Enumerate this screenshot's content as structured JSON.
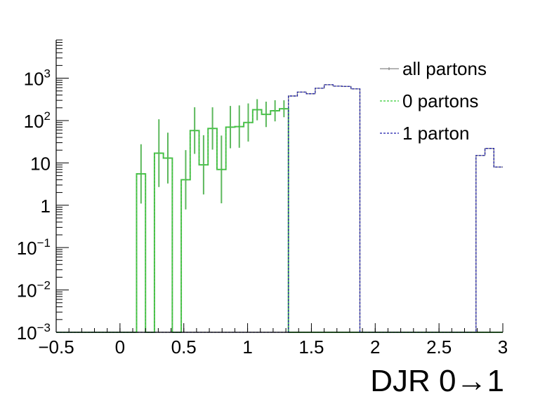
{
  "chart_data": {
    "type": "histogram-step",
    "xlabel": "DJR 0→1",
    "ylabel": "",
    "xlim": [
      -0.5,
      3.0
    ],
    "ylim": [
      0.001,
      8000
    ],
    "yscale": "log",
    "grid": false,
    "legend_position": "top-right",
    "x_ticks": [
      {
        "value": -0.5,
        "label": "−0.5"
      },
      {
        "value": 0,
        "label": "0"
      },
      {
        "value": 0.5,
        "label": "0.5"
      },
      {
        "value": 1,
        "label": "1"
      },
      {
        "value": 1.5,
        "label": "1.5"
      },
      {
        "value": 2,
        "label": "2"
      },
      {
        "value": 2.5,
        "label": "2.5"
      },
      {
        "value": 3,
        "label": "3"
      }
    ],
    "y_ticks": [
      {
        "value": 0.001,
        "base": "10",
        "exp": "−3",
        "plain": ""
      },
      {
        "value": 0.01,
        "base": "10",
        "exp": "−2",
        "plain": ""
      },
      {
        "value": 0.1,
        "base": "10",
        "exp": "−1",
        "plain": ""
      },
      {
        "value": 1,
        "base": "",
        "exp": "",
        "plain": "1"
      },
      {
        "value": 10,
        "base": "",
        "exp": "",
        "plain": "10"
      },
      {
        "value": 100,
        "base": "10",
        "exp": "2",
        "plain": ""
      },
      {
        "value": 1000,
        "base": "10",
        "exp": "3",
        "plain": ""
      }
    ],
    "bin_edges": [
      -0.5,
      -0.43,
      -0.36,
      -0.29,
      -0.22,
      -0.15,
      -0.08,
      -0.01,
      0.06,
      0.13,
      0.2,
      0.27,
      0.34,
      0.41,
      0.48,
      0.55,
      0.62,
      0.69,
      0.76,
      0.83,
      0.9,
      0.97,
      1.04,
      1.11,
      1.18,
      1.25,
      1.32,
      1.39,
      1.46,
      1.53,
      1.6,
      1.67,
      1.74,
      1.81,
      1.88,
      1.95,
      2.02,
      2.09,
      2.16,
      2.23,
      2.3,
      2.37,
      2.44,
      2.51,
      2.58,
      2.65,
      2.72,
      2.79,
      2.86,
      2.93,
      3.0
    ],
    "series": [
      {
        "name": "all partons",
        "color": "#888888",
        "style": "solid",
        "values": [
          0.001,
          0.001,
          0.001,
          0.001,
          0.001,
          0.001,
          0.001,
          0.001,
          0.001,
          0.001,
          0.001,
          0.001,
          0.001,
          0.001,
          0.001,
          0.001,
          0.001,
          0.001,
          0.001,
          0.001,
          0.001,
          0.001,
          0.001,
          0.001,
          0.001,
          0.001,
          380,
          470,
          430,
          580,
          700,
          650,
          640,
          560,
          0.001,
          0.001,
          0.001,
          0.001,
          0.001,
          0.001,
          0.001,
          0.001,
          0.001,
          0.001,
          0.001,
          0.001,
          0.001,
          15,
          22,
          8
        ]
      },
      {
        "name": "0 partons",
        "color": "#33cc33",
        "style": "dashed",
        "values": [
          0.001,
          0.001,
          0.001,
          0.001,
          0.001,
          0.001,
          0.001,
          0.001,
          0.001,
          5.5,
          0.001,
          17,
          13,
          0.001,
          4,
          58,
          9,
          65,
          7,
          70,
          72,
          90,
          180,
          140,
          170,
          190,
          0.001,
          0.001,
          0.001,
          0.001,
          0.001,
          0.001,
          0.001,
          0.001,
          0.001,
          0.001,
          0.001,
          0.001,
          0.001,
          0.001,
          0.001,
          0.001,
          0.001,
          0.001,
          0.001,
          0.001,
          0.001,
          0.001,
          0.001,
          0.001
        ]
      },
      {
        "name": "1 parton",
        "color": "#1a1aaa",
        "style": "dashed",
        "values": [
          0.001,
          0.001,
          0.001,
          0.001,
          0.001,
          0.001,
          0.001,
          0.001,
          0.001,
          0.001,
          0.001,
          0.001,
          0.001,
          0.001,
          0.001,
          0.001,
          0.001,
          0.001,
          0.001,
          0.001,
          0.001,
          0.001,
          0.001,
          0.001,
          0.001,
          0.001,
          380,
          470,
          430,
          580,
          700,
          650,
          640,
          560,
          0.001,
          0.001,
          0.001,
          0.001,
          0.001,
          0.001,
          0.001,
          0.001,
          0.001,
          0.001,
          0.001,
          0.001,
          0.001,
          15,
          22,
          8
        ]
      }
    ],
    "sum_curve": {
      "color": "#5cb85c",
      "values": [
        0.001,
        0.001,
        0.001,
        0.001,
        0.001,
        0.001,
        0.001,
        0.001,
        0.001,
        5.5,
        0.001,
        17,
        13,
        0.001,
        4,
        58,
        9,
        65,
        7,
        70,
        72,
        90,
        180,
        140,
        170,
        190,
        0.001,
        0.001,
        0.001,
        0.001,
        0.001,
        0.001,
        0.001,
        0.001,
        0.001,
        0.001,
        0.001,
        0.001,
        0.001,
        0.001,
        0.001,
        0.001,
        0.001,
        0.001,
        0.001,
        0.001,
        0.001,
        0.001,
        0.001,
        0.001
      ],
      "errors": [
        0,
        0,
        0,
        0,
        0,
        0,
        0,
        0,
        0,
        0.7,
        0,
        0.8,
        0.6,
        0,
        0.7,
        0.55,
        0.7,
        0.5,
        0.8,
        0.5,
        0.5,
        0.45,
        0.25,
        0.3,
        0.25,
        0.2,
        0,
        0,
        0,
        0,
        0,
        0,
        0,
        0,
        0,
        0,
        0,
        0,
        0,
        0,
        0,
        0,
        0,
        0,
        0,
        0,
        0,
        0,
        0,
        0
      ]
    }
  }
}
